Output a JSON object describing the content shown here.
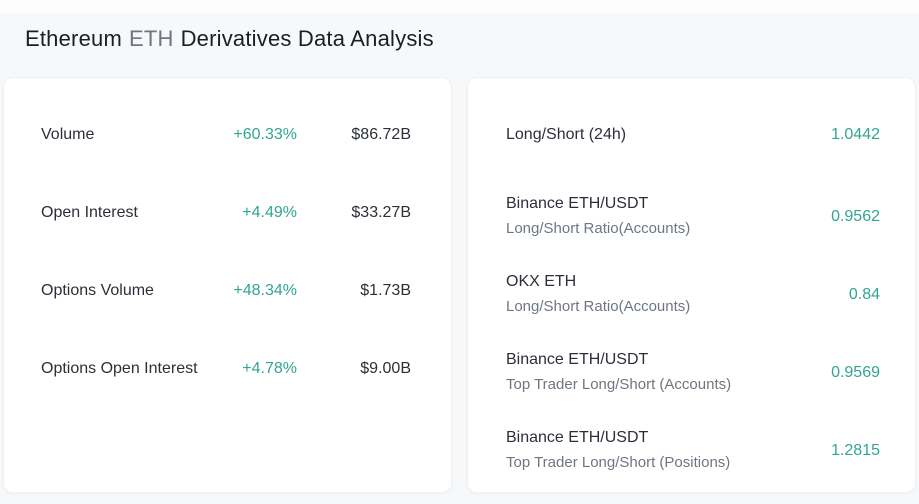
{
  "title": {
    "coin_name": "Ethereum",
    "coin_symbol": "ETH",
    "suffix": "Derivatives Data Analysis"
  },
  "colors": {
    "accent_teal": "#31a592",
    "text_dark": "#2b3038",
    "text_gray": "#6e7781",
    "background": "#f7f8f9",
    "card_background": "#ffffff"
  },
  "left_card": {
    "rows": [
      {
        "label": "Volume",
        "change": "+60.33%",
        "value": "$86.72B"
      },
      {
        "label": "Open Interest",
        "change": "+4.49%",
        "value": "$33.27B"
      },
      {
        "label": "Options Volume",
        "change": "+48.34%",
        "value": "$1.73B"
      },
      {
        "label": "Options Open Interest",
        "change": "+4.78%",
        "value": "$9.00B"
      }
    ]
  },
  "right_card": {
    "rows": [
      {
        "title": "Long/Short (24h)",
        "subtitle": "",
        "value": "1.0442"
      },
      {
        "title": "Binance ETH/USDT",
        "subtitle": "Long/Short Ratio(Accounts)",
        "value": "0.9562"
      },
      {
        "title": "OKX ETH",
        "subtitle": "Long/Short Ratio(Accounts)",
        "value": "0.84"
      },
      {
        "title": "Binance ETH/USDT",
        "subtitle": "Top Trader Long/Short (Accounts)",
        "value": "0.9569"
      },
      {
        "title": "Binance ETH/USDT",
        "subtitle": "Top Trader Long/Short (Positions)",
        "value": "1.2815"
      }
    ]
  }
}
